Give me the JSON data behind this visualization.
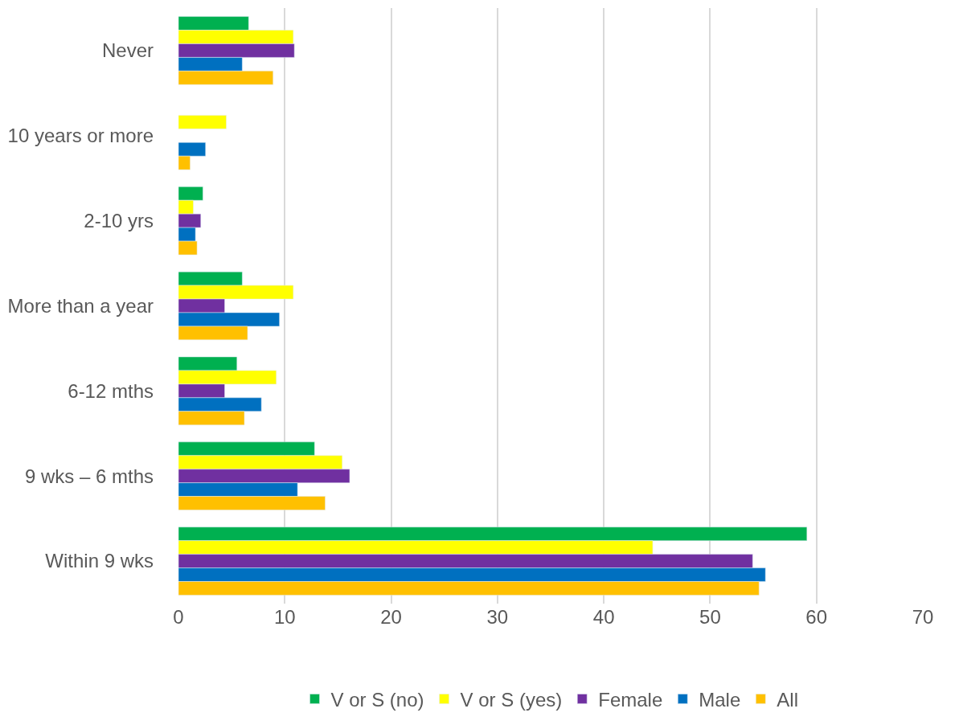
{
  "chart_data": {
    "type": "bar",
    "orientation": "horizontal",
    "categories": [
      "Never",
      "10 years or more",
      "2-10 yrs",
      "More than a year",
      "6-12 mths",
      "9 wks – 6 mths",
      "Within 9 wks"
    ],
    "series": [
      {
        "name": "V or S (no)",
        "color": "#00b050",
        "values": [
          6.6,
          null,
          2.3,
          6.0,
          5.5,
          12.8,
          59.1
        ]
      },
      {
        "name": "V or S (yes)",
        "color": "#ffff00",
        "values": [
          10.8,
          4.5,
          1.4,
          10.8,
          9.2,
          15.4,
          44.6
        ]
      },
      {
        "name": "Female",
        "color": "#7030a0",
        "values": [
          10.9,
          null,
          2.1,
          4.35,
          4.35,
          16.1,
          54.0
        ]
      },
      {
        "name": "Male",
        "color": "#0070c0",
        "values": [
          6.0,
          2.55,
          1.6,
          9.5,
          7.8,
          11.2,
          55.2
        ]
      },
      {
        "name": "All",
        "color": "#ffc000",
        "values": [
          8.9,
          1.1,
          1.75,
          6.5,
          6.2,
          13.8,
          54.6
        ]
      }
    ],
    "xlim": [
      0,
      70
    ],
    "xticks": [
      0,
      10,
      20,
      30,
      40,
      50,
      60,
      70
    ],
    "grid": "x",
    "legend": "bottom"
  }
}
